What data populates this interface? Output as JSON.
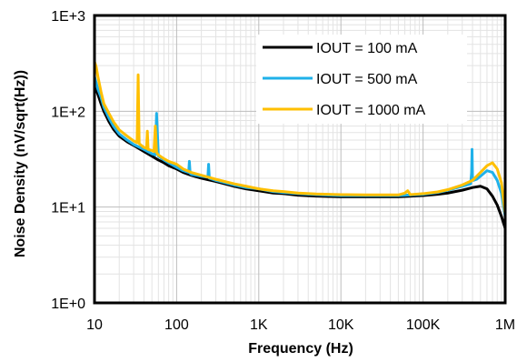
{
  "chart_data": {
    "type": "line",
    "title": "",
    "xlabel": "Frequency (Hz)",
    "ylabel": "Noise Density (nV/sqrt(Hz))",
    "xscale": "log",
    "yscale": "log",
    "xlim": [
      10,
      1000000
    ],
    "ylim": [
      1,
      1000
    ],
    "x_ticks": [
      {
        "value": 10,
        "label": "10"
      },
      {
        "value": 100,
        "label": "100"
      },
      {
        "value": 1000,
        "label": "1K"
      },
      {
        "value": 10000,
        "label": "10K"
      },
      {
        "value": 100000,
        "label": "100K"
      },
      {
        "value": 1000000,
        "label": "1M"
      }
    ],
    "y_ticks": [
      {
        "value": 1,
        "label": "1E+0"
      },
      {
        "value": 10,
        "label": "1E+1"
      },
      {
        "value": 100,
        "label": "1E+2"
      },
      {
        "value": 1000,
        "label": "1E+3"
      }
    ],
    "grid": true,
    "legend_position": "top-right",
    "series": [
      {
        "name": "IOUT = 100 mA",
        "color": "#000000",
        "x": [
          10,
          11,
          12,
          13,
          15,
          17,
          20,
          25,
          30,
          40,
          50,
          60,
          70,
          80,
          100,
          120,
          150,
          200,
          300,
          500,
          700,
          1000,
          1500,
          2000,
          3000,
          5000,
          10000,
          20000,
          50000,
          100000,
          150000,
          200000,
          300000,
          400000,
          500000,
          600000,
          700000,
          800000,
          900000,
          1000000
        ],
        "values": [
          190,
          150,
          120,
          100,
          78,
          65,
          55,
          48,
          44,
          38,
          34,
          31,
          29,
          27,
          25,
          23,
          21.5,
          20,
          18.5,
          16.5,
          15.5,
          14.8,
          14,
          13.8,
          13.3,
          13,
          12.8,
          12.8,
          12.8,
          13.2,
          13.6,
          14,
          15,
          16,
          16.5,
          15.5,
          13,
          10.5,
          8,
          6
        ]
      },
      {
        "name": "IOUT = 500 mA",
        "color": "#1fb1e9",
        "x": [
          10,
          11,
          12,
          13,
          15,
          17,
          20,
          25,
          30,
          40,
          50,
          55,
          57,
          60,
          70,
          80,
          100,
          120,
          140,
          143,
          146,
          150,
          200,
          240,
          245,
          250,
          300,
          500,
          700,
          1000,
          1500,
          2000,
          3000,
          5000,
          10000,
          20000,
          50000,
          100000,
          150000,
          200000,
          300000,
          380000,
          390000,
          395000,
          400000,
          410000,
          450000,
          500000,
          600000,
          700000,
          800000,
          900000,
          1000000
        ],
        "values": [
          230,
          170,
          140,
          110,
          85,
          70,
          58,
          50,
          45,
          40,
          36,
          35,
          95,
          34,
          31,
          29,
          26,
          24,
          23,
          30,
          22.5,
          22,
          21,
          20.5,
          28,
          20,
          19,
          17,
          16,
          15.5,
          14.5,
          14.2,
          13.8,
          13.5,
          13.2,
          13.2,
          13.2,
          13.6,
          14.2,
          15,
          16.5,
          17.5,
          23,
          40,
          20,
          19,
          19.5,
          21,
          24,
          23,
          19,
          14,
          8
        ]
      },
      {
        "name": "IOUT = 1000 mA",
        "color": "#ffbf00",
        "x": [
          10,
          10.5,
          11,
          12,
          13,
          15,
          17,
          20,
          25,
          30,
          33,
          34,
          35,
          36,
          40,
          43,
          44,
          45,
          50,
          53,
          55,
          57,
          60,
          70,
          80,
          100,
          120,
          150,
          200,
          300,
          500,
          700,
          1000,
          1500,
          2000,
          3000,
          5000,
          10000,
          20000,
          50000,
          60000,
          65000,
          70000,
          100000,
          150000,
          200000,
          300000,
          400000,
          500000,
          600000,
          700000,
          800000,
          900000,
          1000000
        ],
        "values": [
          330,
          290,
          230,
          160,
          120,
          95,
          78,
          64,
          55,
          49,
          47,
          240,
          46,
          45,
          42,
          41,
          62,
          40,
          39,
          38,
          70,
          37,
          35,
          32,
          30,
          28,
          25,
          23,
          21.5,
          19.5,
          17.5,
          16.5,
          15.5,
          14.8,
          14.5,
          14,
          13.7,
          13.5,
          13.4,
          13.4,
          14,
          14.8,
          13.5,
          13.8,
          14.4,
          15.2,
          17,
          19,
          23,
          27,
          29,
          25,
          18,
          8.5
        ]
      }
    ]
  }
}
